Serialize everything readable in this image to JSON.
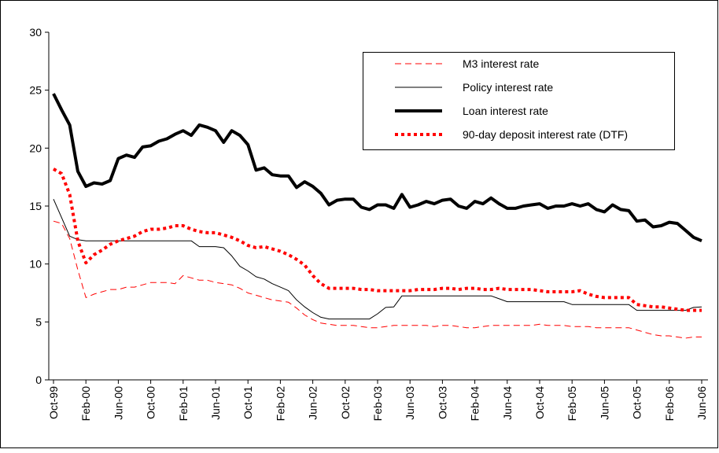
{
  "chart_data": {
    "type": "line",
    "categories": [
      "Oct-99",
      null,
      null,
      null,
      "Feb-00",
      null,
      null,
      null,
      "Jun-00",
      null,
      null,
      null,
      "Oct-00",
      null,
      null,
      null,
      "Feb-01",
      null,
      null,
      null,
      "Jun-01",
      null,
      null,
      null,
      "Oct-01",
      null,
      null,
      null,
      "Feb-02",
      null,
      null,
      null,
      "Jun-02",
      null,
      null,
      null,
      "Oct-02",
      null,
      null,
      null,
      "Feb-03",
      null,
      null,
      null,
      "Jun-03",
      null,
      null,
      null,
      "Oct-03",
      null,
      null,
      null,
      "Feb-04",
      null,
      null,
      null,
      "Jun-04",
      null,
      null,
      null,
      "Oct-04",
      null,
      null,
      null,
      "Feb-05",
      null,
      null,
      null,
      "Jun-05",
      null,
      null,
      null,
      "Oct-05",
      null,
      null,
      null,
      "Feb-06",
      null,
      null,
      null,
      "Jun-06"
    ],
    "series": [
      {
        "name": "M3 interest rate",
        "color": "#ff0000",
        "style": "dashed",
        "line_width": 1,
        "values": [
          13.7,
          13.5,
          12.2,
          9.5,
          7.1,
          7.4,
          7.6,
          7.8,
          7.8,
          8.0,
          8.0,
          8.2,
          8.4,
          8.4,
          8.4,
          8.3,
          9.0,
          8.8,
          8.6,
          8.6,
          8.4,
          8.3,
          8.2,
          7.9,
          7.5,
          7.3,
          7.1,
          6.9,
          6.8,
          6.7,
          6.2,
          5.6,
          5.2,
          4.9,
          4.8,
          4.7,
          4.7,
          4.7,
          4.6,
          4.5,
          4.5,
          4.6,
          4.7,
          4.7,
          4.7,
          4.7,
          4.7,
          4.6,
          4.7,
          4.7,
          4.6,
          4.5,
          4.5,
          4.6,
          4.7,
          4.7,
          4.7,
          4.7,
          4.7,
          4.7,
          4.8,
          4.7,
          4.7,
          4.7,
          4.6,
          4.6,
          4.6,
          4.5,
          4.5,
          4.5,
          4.5,
          4.5,
          4.3,
          4.1,
          3.9,
          3.8,
          3.8,
          3.7,
          3.6,
          3.7,
          3.7
        ]
      },
      {
        "name": "Policy interest rate",
        "color": "#000000",
        "style": "solid",
        "line_width": 1,
        "values": [
          15.6,
          14.0,
          12.4,
          12.1,
          12.0,
          12.0,
          12.0,
          12.0,
          12.0,
          12.0,
          12.0,
          12.0,
          12.0,
          12.0,
          12.0,
          12.0,
          12.0,
          12.0,
          11.5,
          11.5,
          11.5,
          11.4,
          10.7,
          9.8,
          9.4,
          8.9,
          8.7,
          8.3,
          8.0,
          7.7,
          6.9,
          6.3,
          5.8,
          5.4,
          5.25,
          5.25,
          5.25,
          5.25,
          5.25,
          5.25,
          5.7,
          6.25,
          6.3,
          7.25,
          7.25,
          7.25,
          7.25,
          7.25,
          7.25,
          7.25,
          7.25,
          7.25,
          7.25,
          7.25,
          7.25,
          7.0,
          6.75,
          6.75,
          6.75,
          6.75,
          6.75,
          6.75,
          6.75,
          6.75,
          6.5,
          6.5,
          6.5,
          6.5,
          6.5,
          6.5,
          6.5,
          6.5,
          6.0,
          6.0,
          6.0,
          6.0,
          6.0,
          6.0,
          6.0,
          6.25,
          6.3
        ]
      },
      {
        "name": "Loan interest rate",
        "color": "#000000",
        "style": "solid",
        "line_width": 4,
        "values": [
          24.7,
          23.3,
          22.0,
          18.0,
          16.7,
          17.0,
          16.9,
          17.2,
          19.1,
          19.4,
          19.2,
          20.1,
          20.2,
          20.6,
          20.8,
          21.2,
          21.5,
          21.1,
          22.0,
          21.8,
          21.5,
          20.5,
          21.5,
          21.1,
          20.3,
          18.1,
          18.3,
          17.7,
          17.6,
          17.6,
          16.6,
          17.1,
          16.7,
          16.1,
          15.1,
          15.5,
          15.6,
          15.6,
          14.9,
          14.7,
          15.1,
          15.1,
          14.8,
          16.0,
          14.9,
          15.1,
          15.4,
          15.2,
          15.5,
          15.6,
          15.0,
          14.8,
          15.4,
          15.2,
          15.7,
          15.2,
          14.8,
          14.8,
          15.0,
          15.1,
          15.2,
          14.8,
          15.0,
          15.0,
          15.2,
          15.0,
          15.2,
          14.7,
          14.5,
          15.1,
          14.7,
          14.6,
          13.7,
          13.8,
          13.2,
          13.3,
          13.6,
          13.5,
          12.9,
          12.3,
          12.0
        ]
      },
      {
        "name": "90-day deposit interest rate (DTF)",
        "color": "#ff0000",
        "style": "dotted",
        "line_width": 4,
        "values": [
          18.2,
          17.8,
          16.0,
          12.0,
          10.1,
          10.8,
          11.2,
          11.7,
          12.0,
          12.2,
          12.4,
          12.8,
          13.0,
          13.0,
          13.1,
          13.3,
          13.3,
          13.0,
          12.8,
          12.7,
          12.7,
          12.5,
          12.3,
          12.0,
          11.6,
          11.4,
          11.5,
          11.3,
          11.1,
          10.8,
          10.4,
          9.9,
          9.0,
          8.3,
          7.9,
          7.9,
          7.9,
          7.9,
          7.8,
          7.8,
          7.7,
          7.7,
          7.7,
          7.7,
          7.7,
          7.8,
          7.8,
          7.8,
          7.9,
          7.9,
          7.8,
          7.9,
          7.9,
          7.8,
          7.8,
          7.9,
          7.8,
          7.8,
          7.8,
          7.8,
          7.7,
          7.6,
          7.6,
          7.6,
          7.6,
          7.7,
          7.4,
          7.2,
          7.1,
          7.1,
          7.1,
          7.1,
          6.5,
          6.4,
          6.3,
          6.3,
          6.2,
          6.1,
          6.0,
          6.0,
          6.0
        ]
      }
    ],
    "ylim": [
      0,
      30
    ],
    "yticks": [
      0,
      5,
      10,
      15,
      20,
      25,
      30
    ],
    "grid": false,
    "legend": "upper right"
  }
}
